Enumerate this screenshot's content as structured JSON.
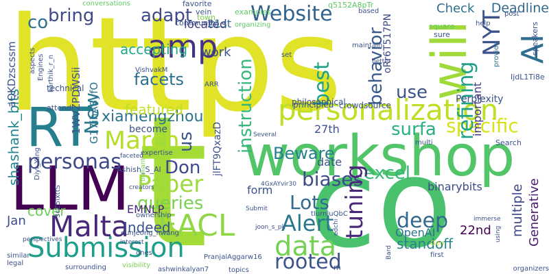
{
  "cloud": {
    "background": "#ffffff",
    "words": [
      {
        "text": "https",
        "color": "#e0e328"
      },
      {
        "text": "workshop",
        "color": "#52c569"
      },
      {
        "text": "co",
        "color": "#4ac16d"
      },
      {
        "text": "t",
        "color": "#a5db36"
      },
      {
        "text": "RT",
        "color": "#277f8e"
      },
      {
        "text": "LLM",
        "color": "#440154"
      },
      {
        "text": "personalization",
        "color": "#bddf26"
      },
      {
        "text": "Submission",
        "color": "#1f9e89"
      },
      {
        "text": "amp",
        "color": "#46327e"
      },
      {
        "text": "Website",
        "color": "#33638d"
      },
      {
        "text": "NYT",
        "color": "#3b528b"
      },
      {
        "text": "AI",
        "color": "#2e6e8e"
      },
      {
        "text": "will",
        "color": "#9fda3a"
      },
      {
        "text": "data",
        "color": "#75d054"
      },
      {
        "text": "Malta",
        "color": "#482878"
      },
      {
        "text": "EACL",
        "color": "#8fd744"
      },
      {
        "text": "March",
        "color": "#b5de2b"
      },
      {
        "text": "Paper",
        "color": "#9fda3a"
      },
      {
        "text": "xiamengzhou",
        "color": "#2c728e"
      },
      {
        "text": "personas",
        "color": "#3e4989"
      },
      {
        "text": "rooted",
        "color": "#3b528b"
      },
      {
        "text": "deep",
        "color": "#31688e"
      },
      {
        "text": "Alert",
        "color": "#2a788e"
      },
      {
        "text": "Lots",
        "color": "#2f6b8e"
      },
      {
        "text": "queries",
        "color": "#7ad151"
      },
      {
        "text": "biases",
        "color": "#3e4c8a"
      },
      {
        "text": "excel",
        "color": "#35b779"
      },
      {
        "text": "surfa",
        "color": "#2ab07f"
      },
      {
        "text": "specific",
        "color": "#d8e219"
      },
      {
        "text": "Beware",
        "color": "#26818e"
      },
      {
        "text": "instruction",
        "color": "#35b779"
      },
      {
        "text": "Don",
        "color": "#3e4989"
      },
      {
        "text": "us",
        "color": "#3b528b"
      },
      {
        "text": "New",
        "color": "#2a788e"
      },
      {
        "text": "best",
        "color": "#1fa188"
      },
      {
        "text": "tuning",
        "color": "#482878"
      },
      {
        "text": "behavior",
        "color": "#38588c"
      },
      {
        "text": "refining",
        "color": "#1fa188"
      },
      {
        "text": "use",
        "color": "#3b528b"
      },
      {
        "text": "adapt",
        "color": "#3e4a89"
      },
      {
        "text": "bring",
        "color": "#3e4989"
      },
      {
        "text": "co",
        "color": "#2d708e"
      },
      {
        "text": "facets",
        "color": "#2c728e"
      },
      {
        "text": "accepting",
        "color": "#22a785"
      },
      {
        "text": "shashank_bits",
        "color": "#25858e"
      },
      {
        "text": "featured",
        "color": "#c2df23"
      },
      {
        "text": "work",
        "color": "#3b528b"
      },
      {
        "text": "located",
        "color": "#443a83"
      },
      {
        "text": "Check",
        "color": "#2e6e8e"
      },
      {
        "text": "Deadline",
        "color": "#31688e"
      },
      {
        "text": "multiple",
        "color": "#3f4788"
      },
      {
        "text": "Generative",
        "color": "#481a6c"
      },
      {
        "text": "EMNLP",
        "color": "#482878"
      },
      {
        "text": "Indeed",
        "color": "#3b528b"
      },
      {
        "text": "cover",
        "color": "#6ece58"
      },
      {
        "text": "Jan",
        "color": "#3e4989"
      },
      {
        "text": "standoff",
        "color": "#26828e"
      },
      {
        "text": "OpenAI",
        "color": "#2c728e"
      },
      {
        "text": "22nd",
        "color": "#440154"
      },
      {
        "text": "27th",
        "color": "#3b528b"
      },
      {
        "text": "date",
        "color": "#3b528b"
      },
      {
        "text": "form",
        "color": "#3b528b"
      },
      {
        "text": "binarybits",
        "color": "#3e4989"
      },
      {
        "text": "21st",
        "color": "#31688e"
      },
      {
        "text": "1WVZPDWSii",
        "color": "#3b528b"
      },
      {
        "text": "aQKDzscssm",
        "color": "#3b528b"
      },
      {
        "text": "G17ihA8yfO",
        "color": "#2c728e"
      },
      {
        "text": "oRr6T517PN",
        "color": "#3e4989"
      },
      {
        "text": "jlFT9QxazD",
        "color": "#3b528b"
      },
      {
        "text": "important",
        "color": "#443983"
      },
      {
        "text": "Perplexity",
        "color": "#3b528b"
      },
      {
        "text": "become",
        "color": "#3b528b"
      },
      {
        "text": "philosophical",
        "color": "#3b528b"
      },
      {
        "text": "principled",
        "color": "#3b528b"
      },
      {
        "text": "crowdsource",
        "color": "#3b528b"
      },
      {
        "text": "vein",
        "color": "#3b528b"
      },
      {
        "text": "town",
        "color": "#7ad151"
      },
      {
        "text": "community",
        "color": "#3b528b"
      },
      {
        "text": "favorite",
        "color": "#3b528b"
      },
      {
        "text": "conversations",
        "color": "#5ec962"
      },
      {
        "text": "examples",
        "color": "#5ec962"
      },
      {
        "text": "organizing",
        "color": "#5ec962"
      },
      {
        "text": "q5152A8pTr",
        "color": "#5ec962"
      },
      {
        "text": "based",
        "color": "#3b528b"
      },
      {
        "text": "square",
        "color": "#5ec962"
      },
      {
        "text": "sure",
        "color": "#3b528b"
      },
      {
        "text": "help",
        "color": "#3b528b"
      },
      {
        "text": "post",
        "color": "#3b528b"
      },
      {
        "text": "speakers",
        "color": "#3b528b"
      },
      {
        "text": "IjdL1Ti8e",
        "color": "#3b528b"
      },
      {
        "text": "maintain",
        "color": "#3b528b"
      },
      {
        "text": "set",
        "color": "#3b528b"
      },
      {
        "text": "provide",
        "color": "#2c728e"
      },
      {
        "text": "VishvakM",
        "color": "#3b528b"
      },
      {
        "text": "karthik_r_n",
        "color": "#3b528b"
      },
      {
        "text": "Engines",
        "color": "#3b528b"
      },
      {
        "text": "aspects",
        "color": "#3b528b"
      },
      {
        "text": "technical",
        "color": "#3b528b"
      },
      {
        "text": "ARR",
        "color": "#3b528b"
      },
      {
        "text": "attend",
        "color": "#3b528b"
      },
      {
        "text": "Several",
        "color": "#3b528b"
      },
      {
        "text": "multi",
        "color": "#3b528b"
      },
      {
        "text": "Search",
        "color": "#3b528b"
      },
      {
        "text": "Ashish_S_AI",
        "color": "#3b528b"
      },
      {
        "text": "expertise",
        "color": "#3b528b"
      },
      {
        "text": "faceted",
        "color": "#3b528b"
      },
      {
        "text": "brilliant",
        "color": "#7ad151"
      },
      {
        "text": "Diyi_Yang",
        "color": "#3b528b"
      },
      {
        "text": "3cZ5ixttS",
        "color": "#3b528b"
      },
      {
        "text": "creators",
        "color": "#3b528b"
      },
      {
        "text": "ownership",
        "color": "#3b528b"
      },
      {
        "text": "eunjeong_hwang",
        "color": "#3b528b"
      },
      {
        "text": "4GxAYvir30",
        "color": "#3b528b"
      },
      {
        "text": "Submit",
        "color": "#3b528b"
      },
      {
        "text": "tIurnluQbC",
        "color": "#3b528b"
      },
      {
        "text": "joon_s_pk",
        "color": "#3b528b"
      },
      {
        "text": "edchi",
        "color": "#3b528b"
      },
      {
        "text": "interest",
        "color": "#3b528b"
      },
      {
        "text": "ones",
        "color": "#3b528b"
      },
      {
        "text": "perspectives",
        "color": "#3b528b"
      },
      {
        "text": "similar",
        "color": "#3b528b"
      },
      {
        "text": "legal",
        "color": "#3b528b"
      },
      {
        "text": "surrounding",
        "color": "#3b528b"
      },
      {
        "text": "visibility",
        "color": "#7ad151"
      },
      {
        "text": "ashwinkalyan7",
        "color": "#3b528b"
      },
      {
        "text": "PranjalAggarw16",
        "color": "#3b528b"
      },
      {
        "text": "topics",
        "color": "#3b528b"
      },
      {
        "text": "m",
        "color": "#3b528b"
      },
      {
        "text": "immerse",
        "color": "#3b528b"
      },
      {
        "text": "Gen",
        "color": "#c2df23"
      },
      {
        "text": "first",
        "color": "#3b528b"
      },
      {
        "text": "Bard",
        "color": "#3b528b"
      },
      {
        "text": "using",
        "color": "#3b528b"
      },
      {
        "text": "organizers",
        "color": "#3b528b"
      },
      {
        "text": "better",
        "color": "#3b528b"
      },
      {
        "text": "s",
        "color": "#3b528b"
      }
    ]
  }
}
